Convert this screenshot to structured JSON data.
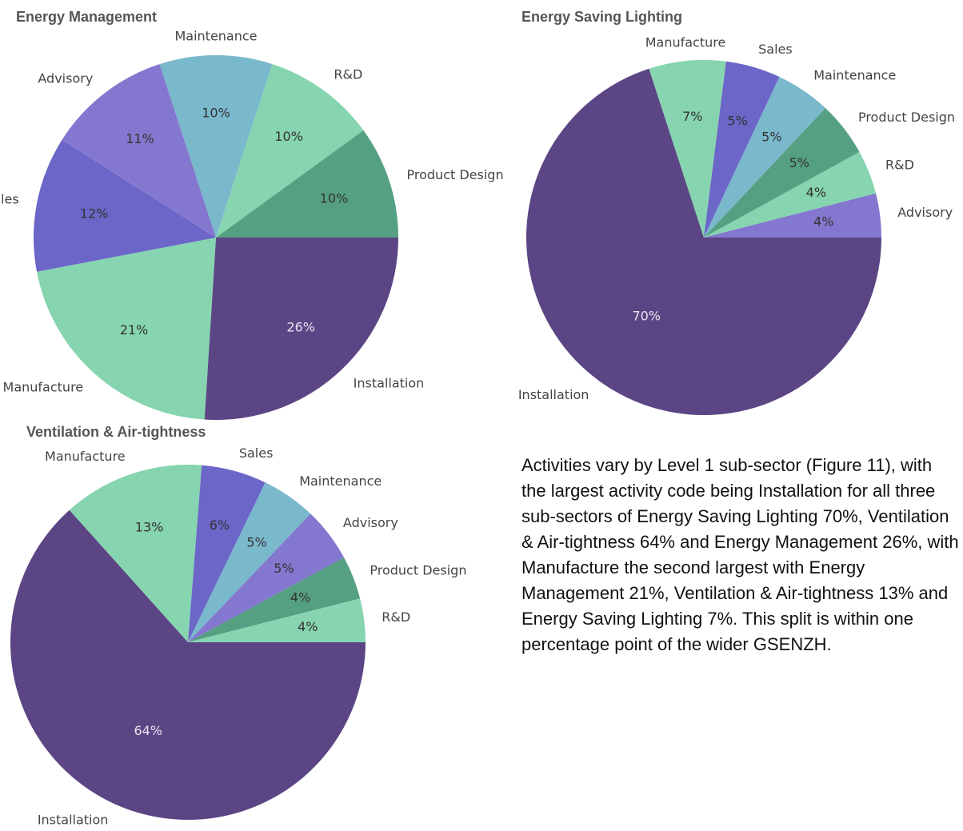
{
  "chart_data": [
    {
      "type": "pie",
      "title": "Energy Management",
      "categories": [
        "Installation",
        "Manufacture",
        "Sales",
        "Advisory",
        "Maintenance",
        "R&D",
        "Product Design"
      ],
      "values": [
        26,
        21,
        12,
        11,
        10,
        10,
        10
      ],
      "value_labels": [
        "26%",
        "21%",
        "12%",
        "11%",
        "10%",
        "10%",
        "10%"
      ],
      "colors": [
        "#5b4584",
        "#86d4b0",
        "#6b66c8",
        "#8477cf",
        "#7ab8cc",
        "#86d4b0",
        "#55a082"
      ]
    },
    {
      "type": "pie",
      "title": "Energy Saving Lighting",
      "categories": [
        "Installation",
        "Manufacture",
        "Sales",
        "Maintenance",
        "Product Design",
        "R&D",
        "Advisory"
      ],
      "values": [
        70,
        7,
        5,
        5,
        5,
        4,
        4
      ],
      "value_labels": [
        "70%",
        "7%",
        "5%",
        "5%",
        "5%",
        "4%",
        "4%"
      ],
      "colors": [
        "#5b4584",
        "#86d4b0",
        "#6b66c8",
        "#7ab8cc",
        "#55a082",
        "#86d4b0",
        "#8477cf"
      ]
    },
    {
      "type": "pie",
      "title": "Ventilation & Air-tightness",
      "categories": [
        "Installation",
        "Manufacture",
        "Sales",
        "Maintenance",
        "Advisory",
        "Product Design",
        "R&D"
      ],
      "values": [
        64,
        13,
        6,
        5,
        5,
        4,
        4
      ],
      "value_labels": [
        "64%",
        "13%",
        "6%",
        "5%",
        "5%",
        "4%",
        "4%"
      ],
      "colors": [
        "#5b4584",
        "#86d4b0",
        "#6b66c8",
        "#7ab8cc",
        "#8477cf",
        "#55a082",
        "#86d4b0"
      ]
    }
  ],
  "text": {
    "paragraph": "Activities vary by Level 1 sub-sector (Figure 11), with the largest activity code being Installation for all three sub-sectors of Energy Saving Lighting 70%, Ventilation & Air-tightness 64% and Energy Management 26%, with Manufacture the second largest with Energy Management 21%, Ventilation & Air-tightness 13% and Energy Saving Lighting 7%. This split is within one percentage point of the wider GSENZH."
  }
}
